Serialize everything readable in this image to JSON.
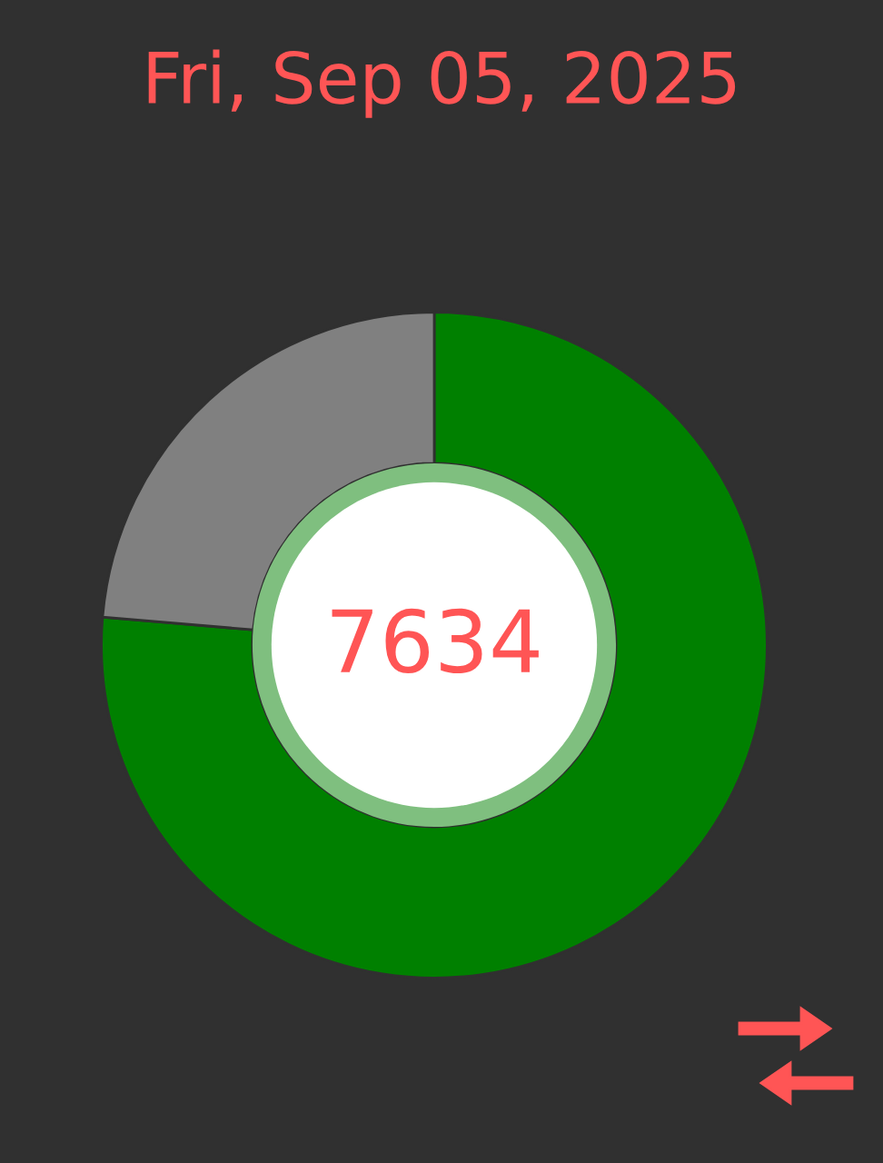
{
  "chart_data": {
    "type": "donut",
    "title": "Fri, Sep 05, 2025",
    "categories": [
      null,
      null
    ],
    "values": [
      76.34,
      23.66
    ],
    "colors": [
      "#008000",
      "#808080"
    ],
    "legend": false,
    "annotations": [
      "7634"
    ]
  }
}
